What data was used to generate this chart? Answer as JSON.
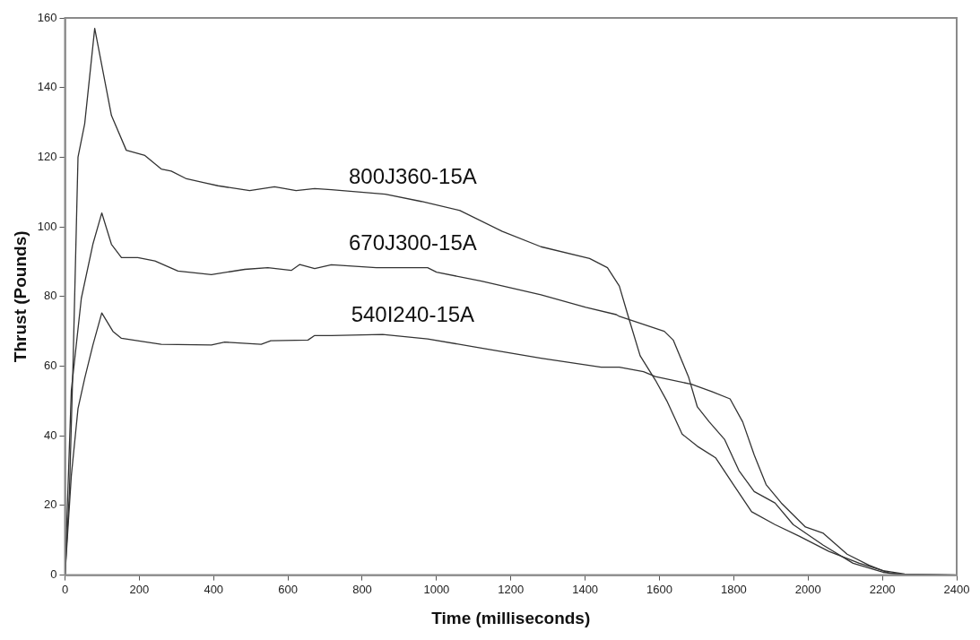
{
  "chart_data": {
    "type": "line",
    "xlabel": "Time (milliseconds)",
    "ylabel": "Thrust (Pounds)",
    "xlim": [
      0,
      2400
    ],
    "xticks": [
      0,
      200,
      400,
      600,
      800,
      1000,
      1200,
      1400,
      1600,
      1800,
      2000,
      2200,
      2400
    ],
    "ylim": [
      0,
      160
    ],
    "yticks": [
      0,
      20,
      40,
      60,
      80,
      100,
      120,
      140,
      160
    ],
    "grid": false,
    "legend": false,
    "marker": "none",
    "series": [
      {
        "name": "800J360-15A",
        "color": "#333333",
        "x": [
          0,
          12,
          22,
          35,
          53,
          80,
          125,
          165,
          215,
          259,
          286,
          327,
          375,
          412,
          497,
          564,
          622,
          672,
          717,
          862,
          959,
          1063,
          1177,
          1281,
          1412,
          1460,
          1492,
          1516,
          1548,
          1589,
          1620,
          1661,
          1702,
          1751,
          1799,
          1848,
          1911,
          1976,
          2056,
          2138,
          2202,
          2260,
          2400
        ],
        "values": [
          0,
          24,
          62,
          120,
          129.6,
          157,
          132,
          122,
          120.5,
          116.6,
          116,
          113.8,
          112.7,
          111.8,
          110.4,
          111.5,
          110.4,
          111,
          110.7,
          109.4,
          107.3,
          104.7,
          98.7,
          94.3,
          90.9,
          88.3,
          83,
          74.3,
          63,
          56,
          50,
          40.5,
          37,
          33.7,
          26,
          18.2,
          14.5,
          11.2,
          6.8,
          3.4,
          1.3,
          0.3,
          0
        ]
      },
      {
        "name": "670J300-15A",
        "color": "#333333",
        "x": [
          0,
          17,
          44,
          75,
          99,
          125,
          152,
          196,
          242,
          304,
          394,
          484,
          546,
          609,
          632,
          672,
          717,
          838,
          976,
          1000,
          1121,
          1281,
          1402,
          1484,
          1492,
          1613,
          1637,
          1678,
          1702,
          1734,
          1775,
          1814,
          1855,
          1911,
          1960,
          2041,
          2121,
          2202,
          2260,
          2400
        ],
        "values": [
          0,
          53,
          79.5,
          95,
          104,
          95,
          91.2,
          91.2,
          90.2,
          87.3,
          86.3,
          87.8,
          88.3,
          87.5,
          89.2,
          88,
          89.1,
          88.3,
          88.3,
          87,
          84.4,
          80.5,
          76.9,
          74.8,
          74.3,
          70,
          67.5,
          57,
          48.3,
          44,
          39,
          30,
          24,
          20.7,
          14.5,
          8.6,
          3.4,
          0.8,
          0.2,
          0
        ]
      },
      {
        "name": "540I240-15A",
        "color": "#333333",
        "x": [
          0,
          17,
          35,
          53,
          75,
          99,
          129,
          152,
          215,
          259,
          394,
          430,
          528,
          554,
          654,
          672,
          717,
          855,
          976,
          1121,
          1281,
          1443,
          1492,
          1557,
          1589,
          1686,
          1741,
          1790,
          1824,
          1855,
          1887,
          1928,
          1993,
          2041,
          2105,
          2163,
          2219,
          2260,
          2400
        ],
        "values": [
          0,
          28.5,
          47.8,
          56.5,
          66,
          75.3,
          70,
          68,
          67,
          66.3,
          66.1,
          66.9,
          66.3,
          67.3,
          67.5,
          68.8,
          68.8,
          69.1,
          67.8,
          65.2,
          62.3,
          59.7,
          59.7,
          58.4,
          57,
          54.8,
          52.7,
          50.6,
          44,
          34.5,
          26,
          20.7,
          13.8,
          12,
          6,
          2.9,
          0.5,
          0.2,
          0
        ]
      }
    ]
  }
}
